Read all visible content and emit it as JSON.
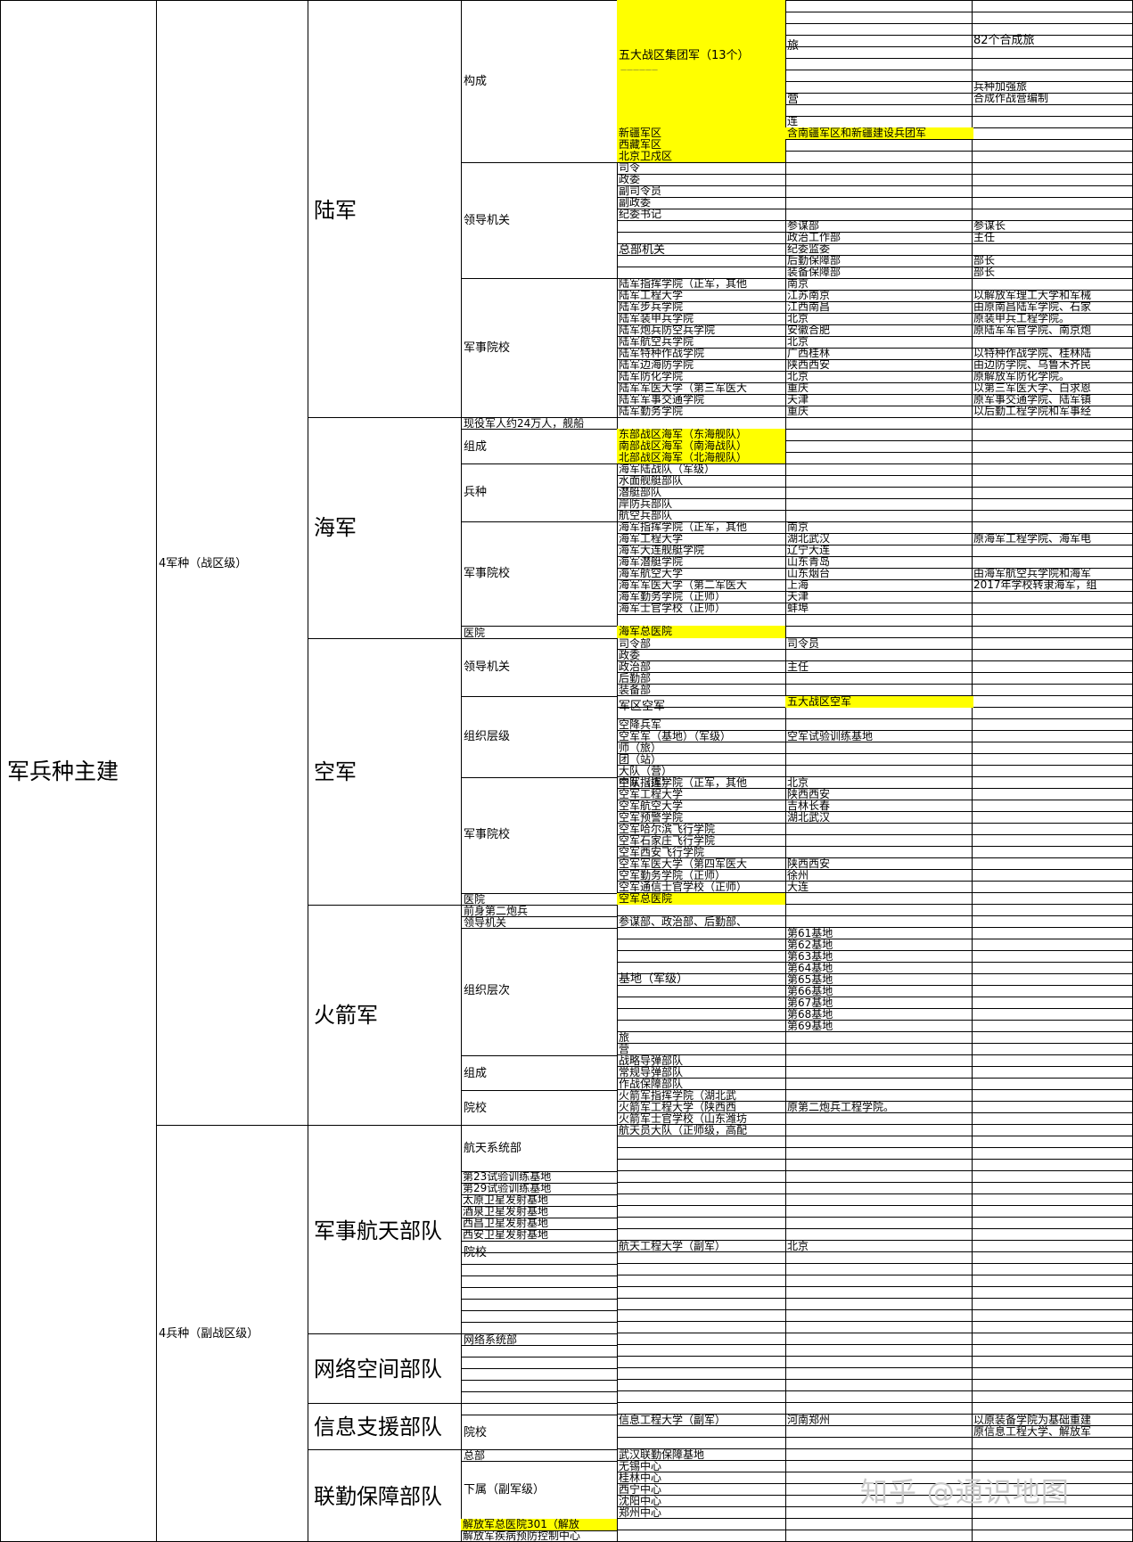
{
  "root": {
    "label": "军兵种主建"
  },
  "groups": [
    {
      "label": "4军种（战区级）"
    },
    {
      "label": "4兵种（副战区级）"
    }
  ],
  "services": [
    {
      "label": "陆军"
    },
    {
      "label": "海军"
    },
    {
      "label": "空军"
    },
    {
      "label": "火箭军"
    },
    {
      "label": "军事航天部队"
    },
    {
      "label": "网络空间部队"
    },
    {
      "label": "信息支援部队"
    },
    {
      "label": "联勤保障部队"
    }
  ],
  "categories": {
    "army_composition": "构成",
    "army_leadership": "领导机关",
    "army_schools": "军事院校",
    "navy_personnel": "现役军人约24万人，舰船",
    "navy_composition": "组成",
    "navy_branches": "兵种",
    "navy_schools": "军事院校",
    "navy_hospital": "医院",
    "af_leadership": "领导机关",
    "af_org_levels": "组织层级",
    "af_schools": "军事院校",
    "af_hospital": "医院",
    "rf_predecessor": "前身第二炮兵",
    "rf_leadership": "领导机关",
    "rf_org_levels": "组织层次",
    "rf_composition": "组成",
    "rf_schools": "院校",
    "space_dept": "航天系统部",
    "space_school": "院校",
    "cyber_dept": "网络系统部",
    "info_school": "院校",
    "jl_hq": "总部",
    "jl_sub": "下属（副军级）"
  },
  "army": {
    "group_armies": "五大战区集团军（13个）",
    "group_armies_note": "——————",
    "xinjiang": "新疆军区",
    "tibet": "西藏军区",
    "beijing": "北京卫戍区",
    "brigade": "旅",
    "battalion": "营",
    "company": "连",
    "combined_brigades": "82个合成旅",
    "arms_brigade": "兵种加强旅",
    "combined_battalion": "合成作战营编制",
    "xj_note": "含南疆军区和新疆建设兵团军",
    "leaders": [
      "司令",
      "政委",
      "副司令员",
      "副政委",
      "纪委书记"
    ],
    "hq_label": "总部机关",
    "hq_depts": [
      "参谋部",
      "政治工作部",
      "纪委监委",
      "后勤保障部",
      "装备保障部"
    ],
    "hq_heads": [
      "参谋长",
      "主任",
      "",
      "部长",
      "部长"
    ],
    "schools": [
      "陆军指挥学院（正军，其他",
      "陆军工程大学",
      "陆军步兵学院",
      "陆军装甲兵学院",
      "陆军炮兵防空兵学院",
      "陆军航空兵学院",
      "陆军特种作战学院",
      "陆军边海防学院",
      "陆军防化学院",
      "陆军军医大学（第三军医大",
      "陆军军事交通学院",
      "陆军勤务学院"
    ],
    "school_locs": [
      "南京",
      "江苏南京",
      "江西南昌",
      "北京",
      "安徽合肥",
      "北京",
      "广西桂林",
      "陕西西安",
      "北京",
      "重庆",
      "天津",
      "重庆"
    ],
    "school_notes": [
      "",
      "以解放军理工大学和军械",
      "由原南昌陆军学院、石家",
      "原装甲兵工程学院。",
      "原陆军军官学院、南京炮",
      "",
      "以特种作战学院、桂林陆",
      "由边防学院、乌鲁木齐民",
      "原解放军防化学院。",
      "以第三军医大学、白求恩",
      "原军事交通学院、陆军镇",
      "以后勤工程学院和军事经"
    ]
  },
  "navy": {
    "fleets": [
      "东部战区海军（东海舰队）",
      "南部战区海军（南海战队）",
      "北部战区海军（北海舰队）"
    ],
    "branches": [
      "海军陆战队（军级）",
      "水面舰艇部队",
      "潜艇部队",
      "岸防兵部队",
      "航空兵部队"
    ],
    "schools": [
      "海军指挥学院（正军，其他",
      "海军工程大学",
      "海军大连舰艇学院",
      "海军潜艇学院",
      "海军航空大学",
      "海军军医大学（第二军医大",
      "海军勤务学院（正师）",
      "海军士官学校（正师）"
    ],
    "school_locs": [
      "南京",
      "湖北武汉",
      "辽宁大连",
      "山东青岛",
      "山东烟台",
      "上海",
      "天津",
      "蚌埠"
    ],
    "school_notes": [
      "",
      "原海军工程学院、海军电",
      "",
      "",
      "由海军航空兵学院和海军",
      "2017年学校转隶海军，组",
      "",
      ""
    ],
    "hospital": "海军总医院"
  },
  "airforce": {
    "leaders": [
      "司令部",
      "政委",
      "政治部",
      "后勤部",
      "装备部"
    ],
    "leader_heads": [
      "司令员",
      "",
      "主任",
      "",
      ""
    ],
    "levels": [
      "军区空军",
      "空降兵军",
      "空军军（基地）（军级）",
      "师（旅）",
      "团（站）",
      "大队（营）",
      "中队（连）"
    ],
    "level_notes": [
      "五大战区空军",
      "",
      "空军试验训练基地",
      "",
      "",
      "",
      ""
    ],
    "schools": [
      "空军指挥学院（正军，其他",
      "空军工程大学",
      "空军航空大学",
      "空军预警学院",
      "空军哈尔滨飞行学院",
      "空军石家庄飞行学院",
      "空军西安飞行学院",
      "空军军医大学（第四军医大",
      "空军勤务学院（正师）",
      "空军通信士官学校（正师）"
    ],
    "school_locs": [
      "北京",
      "陕西西安",
      "吉林长春",
      "湖北武汉",
      "",
      "",
      "",
      "陕西西安",
      "徐州",
      "大连"
    ],
    "hospital": "空军总医院"
  },
  "rocket": {
    "leader_depts": "参谋部、政治部、后勤部、",
    "base_label": "基地（军级）",
    "bases": [
      "第61基地",
      "第62基地",
      "第63基地",
      "第64基地",
      "第65基地",
      "第66基地",
      "第67基地",
      "第68基地",
      "第69基地"
    ],
    "brigade": "旅",
    "battalion": "营",
    "composition": [
      "战略导弹部队",
      "常规导弹部队",
      "作战保障部队"
    ],
    "schools": [
      "火箭军指挥学院（湖北武",
      "火箭军工程大学（陕西西",
      "火箭军士官学校（山东潍坊"
    ],
    "school_note": "原第二炮兵工程学院。"
  },
  "space": {
    "astronaut": "航天员大队（正师级，高配",
    "bases": [
      "第23试验训练基地",
      "第29试验训练基地",
      "太原卫星发射基地",
      "酒泉卫星发射基地",
      "西昌卫星发射基地",
      "西安卫星发射基地"
    ],
    "school": "航天工程大学（副军）",
    "school_loc": "北京"
  },
  "info": {
    "school": "信息工程大学（副军）",
    "school_loc": "河南郑州",
    "school_notes": [
      "以原装备学院为基础重建",
      "原信息工程大学、解放军"
    ]
  },
  "jl": {
    "hq": "武汉联勤保障基地",
    "centers": [
      "无锡中心",
      "桂林中心",
      "西宁中心",
      "沈阳中心",
      "郑州中心"
    ],
    "hospital": "解放军总医院301（解放",
    "cdc": "解放军疾病预防控制中心"
  },
  "watermark": "知乎 @通识地图",
  "colors": {
    "highlight": "#ffff00",
    "grid": "#000000",
    "background": "#ffffff"
  }
}
